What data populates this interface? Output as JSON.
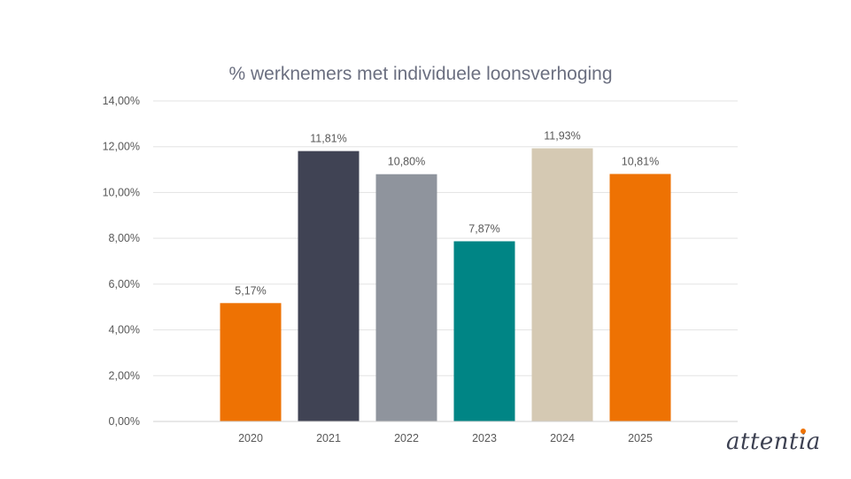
{
  "chart_data": {
    "type": "bar",
    "title": "% werknemers met individuele loonsverhoging",
    "categories": [
      "2020",
      "2021",
      "2022",
      "2023",
      "2024",
      "2025"
    ],
    "values": [
      5.17,
      11.81,
      10.8,
      7.87,
      11.93,
      10.81
    ],
    "data_labels": [
      "5,17%",
      "11,81%",
      "10,80%",
      "7,87%",
      "11,93%",
      "10,81%"
    ],
    "colors": [
      "#ee7203",
      "#404354",
      "#8f949d",
      "#008585",
      "#d5c9b3",
      "#ee7203"
    ],
    "ylim": [
      0,
      14
    ],
    "yticks": [
      0,
      2,
      4,
      6,
      8,
      10,
      12,
      14
    ],
    "ytick_labels": [
      "0,00%",
      "2,00%",
      "4,00%",
      "6,00%",
      "8,00%",
      "10,00%",
      "12,00%",
      "14,00%"
    ],
    "grid": true,
    "xlabel": "",
    "ylabel": ""
  },
  "brand": {
    "logo_text": "attentia",
    "accent_color": "#ee7203"
  }
}
